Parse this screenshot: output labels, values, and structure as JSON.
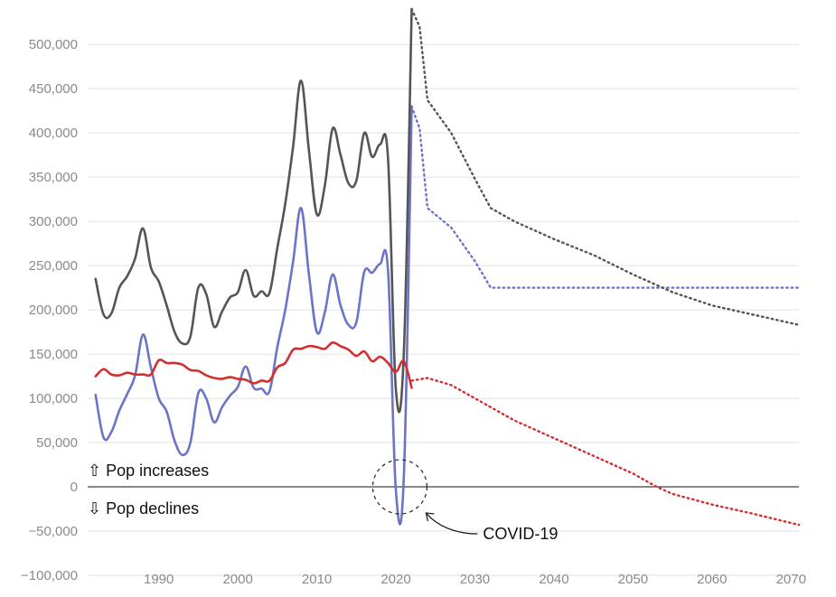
{
  "chart_data": {
    "type": "line",
    "title": "",
    "xlabel": "",
    "ylabel": "",
    "xlim": [
      1981,
      2071
    ],
    "ylim": [
      -100000,
      540000
    ],
    "grid": true,
    "legend": "none",
    "x_ticks": [
      {
        "value": 1990,
        "label": "1990"
      },
      {
        "value": 2000,
        "label": "2000"
      },
      {
        "value": 2010,
        "label": "2010"
      },
      {
        "value": 2020,
        "label": "2020"
      },
      {
        "value": 2030,
        "label": "2030"
      },
      {
        "value": 2040,
        "label": "2040"
      },
      {
        "value": 2050,
        "label": "2050"
      },
      {
        "value": 2060,
        "label": "2060"
      },
      {
        "value": 2070,
        "label": "2070"
      }
    ],
    "y_ticks": [
      {
        "value": 500000,
        "label": "500,000"
      },
      {
        "value": 450000,
        "label": "450,000"
      },
      {
        "value": 400000,
        "label": "400,000"
      },
      {
        "value": 350000,
        "label": "350,000"
      },
      {
        "value": 300000,
        "label": "300,000"
      },
      {
        "value": 250000,
        "label": "250,000"
      },
      {
        "value": 200000,
        "label": "200,000"
      },
      {
        "value": 150000,
        "label": "150,000"
      },
      {
        "value": 100000,
        "label": "100,000"
      },
      {
        "value": 50000,
        "label": "50,000"
      },
      {
        "value": 0,
        "label": "0"
      },
      {
        "value": -50000,
        "label": "−50,000"
      },
      {
        "value": -100000,
        "label": "−100,000"
      }
    ],
    "series": [
      {
        "id": "grey",
        "color": "#555555",
        "points": [
          [
            1982,
            235000
          ],
          [
            1983,
            195000
          ],
          [
            1984,
            196000
          ],
          [
            1985,
            225000
          ],
          [
            1986,
            238000
          ],
          [
            1987,
            258000
          ],
          [
            1988,
            292000
          ],
          [
            1989,
            248000
          ],
          [
            1990,
            232000
          ],
          [
            1991,
            205000
          ],
          [
            1992,
            175000
          ],
          [
            1993,
            162000
          ],
          [
            1994,
            170000
          ],
          [
            1995,
            225000
          ],
          [
            1996,
            218000
          ],
          [
            1997,
            181000
          ],
          [
            1998,
            198000
          ],
          [
            1999,
            214000
          ],
          [
            2000,
            220000
          ],
          [
            2001,
            245000
          ],
          [
            2002,
            216000
          ],
          [
            2003,
            221000
          ],
          [
            2004,
            219000
          ],
          [
            2005,
            270000
          ],
          [
            2006,
            320000
          ],
          [
            2007,
            385000
          ],
          [
            2008,
            459000
          ],
          [
            2009,
            380000
          ],
          [
            2010,
            308000
          ],
          [
            2011,
            340000
          ],
          [
            2012,
            405000
          ],
          [
            2013,
            375000
          ],
          [
            2014,
            343000
          ],
          [
            2015,
            346000
          ],
          [
            2016,
            400000
          ],
          [
            2017,
            373000
          ],
          [
            2018,
            387000
          ],
          [
            2019,
            372000
          ],
          [
            2020,
            110000
          ],
          [
            2021,
            150000
          ],
          [
            2022,
            540000
          ]
        ]
      },
      {
        "id": "grey-projection",
        "color": "#555555",
        "dotted": true,
        "points": [
          [
            2022,
            540000
          ],
          [
            2023,
            520000
          ],
          [
            2024,
            437000
          ],
          [
            2027,
            400000
          ],
          [
            2030,
            348000
          ],
          [
            2032,
            315000
          ],
          [
            2035,
            300000
          ],
          [
            2040,
            280000
          ],
          [
            2045,
            262000
          ],
          [
            2050,
            240000
          ],
          [
            2055,
            220000
          ],
          [
            2060,
            205000
          ],
          [
            2065,
            195000
          ],
          [
            2071,
            183000
          ]
        ]
      },
      {
        "id": "blue",
        "color": "#6b74c6",
        "points": [
          [
            1982,
            104000
          ],
          [
            1983,
            56000
          ],
          [
            1984,
            62000
          ],
          [
            1985,
            86000
          ],
          [
            1986,
            105000
          ],
          [
            1987,
            126000
          ],
          [
            1988,
            172000
          ],
          [
            1989,
            135000
          ],
          [
            1990,
            100000
          ],
          [
            1991,
            85000
          ],
          [
            1992,
            52000
          ],
          [
            1993,
            36000
          ],
          [
            1994,
            50000
          ],
          [
            1995,
            106000
          ],
          [
            1996,
            100000
          ],
          [
            1997,
            73000
          ],
          [
            1998,
            90000
          ],
          [
            1999,
            103000
          ],
          [
            2000,
            113000
          ],
          [
            2001,
            136000
          ],
          [
            2002,
            112000
          ],
          [
            2003,
            111000
          ],
          [
            2004,
            108000
          ],
          [
            2005,
            158000
          ],
          [
            2006,
            200000
          ],
          [
            2007,
            255000
          ],
          [
            2008,
            315000
          ],
          [
            2009,
            240000
          ],
          [
            2010,
            175000
          ],
          [
            2011,
            197000
          ],
          [
            2012,
            240000
          ],
          [
            2013,
            205000
          ],
          [
            2014,
            183000
          ],
          [
            2015,
            186000
          ],
          [
            2016,
            243000
          ],
          [
            2017,
            242000
          ],
          [
            2018,
            252000
          ],
          [
            2019,
            245000
          ],
          [
            2020,
            -4000
          ],
          [
            2021,
            10000
          ],
          [
            2022,
            430000
          ]
        ]
      },
      {
        "id": "blue-projection",
        "color": "#6b74c6",
        "dotted": true,
        "points": [
          [
            2022,
            430000
          ],
          [
            2023,
            405000
          ],
          [
            2024,
            315000
          ],
          [
            2027,
            293000
          ],
          [
            2030,
            255000
          ],
          [
            2032,
            225000
          ],
          [
            2040,
            225000
          ],
          [
            2050,
            225000
          ],
          [
            2060,
            225000
          ],
          [
            2071,
            225000
          ]
        ]
      },
      {
        "id": "red",
        "color": "#d32f2f",
        "points": [
          [
            1982,
            125000
          ],
          [
            1983,
            133000
          ],
          [
            1984,
            127000
          ],
          [
            1985,
            126000
          ],
          [
            1986,
            129000
          ],
          [
            1987,
            127000
          ],
          [
            1988,
            127000
          ],
          [
            1989,
            127000
          ],
          [
            1990,
            143000
          ],
          [
            1991,
            140000
          ],
          [
            1992,
            140000
          ],
          [
            1993,
            138000
          ],
          [
            1994,
            132000
          ],
          [
            1995,
            131000
          ],
          [
            1996,
            126000
          ],
          [
            1997,
            123000
          ],
          [
            1998,
            122000
          ],
          [
            1999,
            124000
          ],
          [
            2000,
            122000
          ],
          [
            2001,
            121000
          ],
          [
            2002,
            117000
          ],
          [
            2003,
            120000
          ],
          [
            2004,
            120000
          ],
          [
            2005,
            135000
          ],
          [
            2006,
            140000
          ],
          [
            2007,
            155000
          ],
          [
            2008,
            156000
          ],
          [
            2009,
            159000
          ],
          [
            2010,
            158000
          ],
          [
            2011,
            156000
          ],
          [
            2012,
            163000
          ],
          [
            2013,
            159000
          ],
          [
            2014,
            155000
          ],
          [
            2015,
            148000
          ],
          [
            2016,
            153000
          ],
          [
            2017,
            142000
          ],
          [
            2018,
            147000
          ],
          [
            2019,
            140000
          ],
          [
            2020,
            130000
          ],
          [
            2021,
            142000
          ],
          [
            2022,
            112000
          ]
        ]
      },
      {
        "id": "red-projection",
        "color": "#d32f2f",
        "dotted": true,
        "points": [
          [
            2022,
            120000
          ],
          [
            2024,
            123000
          ],
          [
            2027,
            115000
          ],
          [
            2030,
            100000
          ],
          [
            2035,
            75000
          ],
          [
            2040,
            55000
          ],
          [
            2045,
            35000
          ],
          [
            2050,
            15000
          ],
          [
            2053,
            0
          ],
          [
            2055,
            -8000
          ],
          [
            2060,
            -20000
          ],
          [
            2065,
            -30000
          ],
          [
            2071,
            -43000
          ]
        ]
      }
    ],
    "annotations": {
      "pop_increases": "⇧ Pop increases",
      "pop_declines": "⇩ Pop declines",
      "covid": "COVID-19",
      "covid_circle_center": [
        2020.5,
        0
      ]
    }
  }
}
